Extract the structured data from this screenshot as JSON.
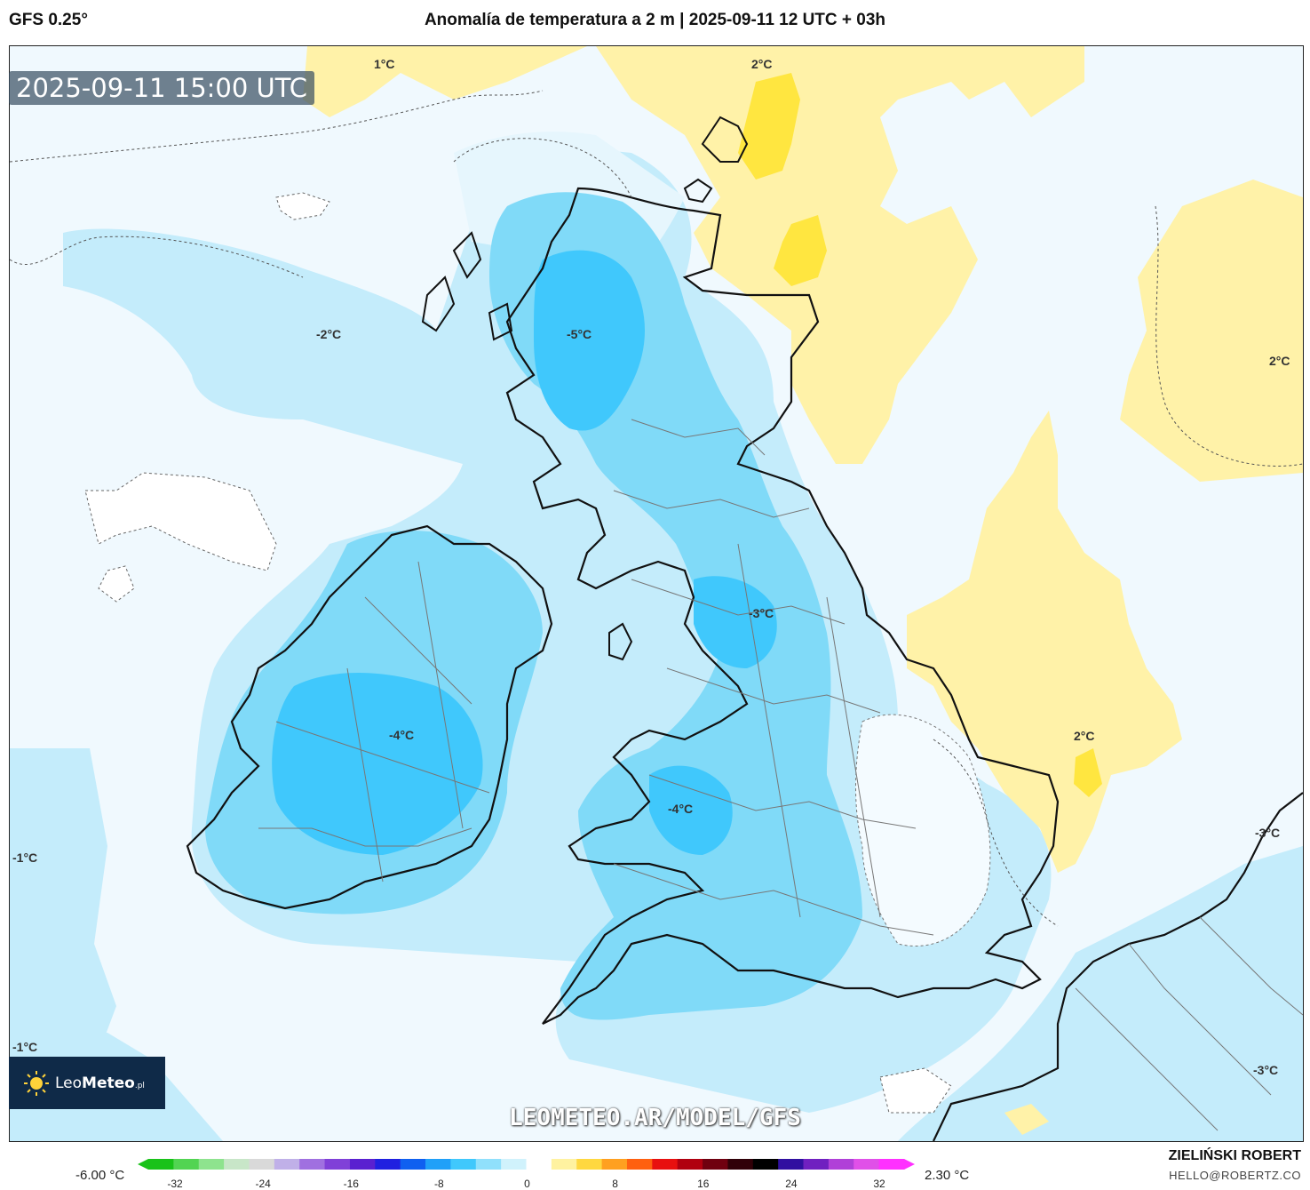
{
  "header": {
    "model": "GFS 0.25°",
    "title": "Anomalía de temperatura a 2 m | 2025-09-11 12 UTC + 03h"
  },
  "valid_time": "2025-09-11 15:00 UTC",
  "logo": {
    "brand_light": "Leo",
    "brand_bold": "Meteo",
    "suffix": ".pl"
  },
  "watermark": "LEOMETEO.AR/MODEL/GFS",
  "contour_labels": [
    {
      "id": "label-1c-north",
      "text": "1°C"
    },
    {
      "id": "label-2c-shetland",
      "text": "2°C"
    },
    {
      "id": "label-minus2c-atlantic",
      "text": "-2°C"
    },
    {
      "id": "label-minus5c-scotland",
      "text": "-5°C"
    },
    {
      "id": "label-2c-norway",
      "text": "2°C"
    },
    {
      "id": "label-minus3c-england",
      "text": "-3°C"
    },
    {
      "id": "label-minus4c-ireland",
      "text": "-4°C"
    },
    {
      "id": "label-2c-northsea",
      "text": "2°C"
    },
    {
      "id": "label-minus4c-wales",
      "text": "-4°C"
    },
    {
      "id": "label-minus3c-netherlands",
      "text": "-3°C"
    },
    {
      "id": "label-minus1c-west",
      "text": "-1°C"
    },
    {
      "id": "label-minus1c-southwest",
      "text": "-1°C"
    },
    {
      "id": "label-minus3c-belgium",
      "text": "-3°C"
    }
  ],
  "legend": {
    "min_label": "-6.00 °C",
    "max_label": "2.30 °C",
    "ticks": [
      "-32",
      "-24",
      "-16",
      "-8",
      "0",
      "8",
      "16",
      "24",
      "32"
    ],
    "colors": [
      "#19c219",
      "#52d452",
      "#8ee38e",
      "#c8e6c8",
      "#d9d9d9",
      "#c0b0e8",
      "#a070e0",
      "#8040d8",
      "#5a20d0",
      "#2020e0",
      "#1060f0",
      "#20a0f8",
      "#40c8fc",
      "#90e0fc",
      "#d0f2fc",
      "#ffffff",
      "#fff2a0",
      "#ffd840",
      "#ffa020",
      "#ff6010",
      "#e81010",
      "#b00010",
      "#700010",
      "#300008",
      "#000000",
      "#3010a0",
      "#7020c0",
      "#b040d8",
      "#e050e8",
      "#ff30ff"
    ]
  },
  "credits": {
    "author": "ZIELIŃSKI ROBERT",
    "email": "HELLO@ROBERTZ.CO"
  }
}
